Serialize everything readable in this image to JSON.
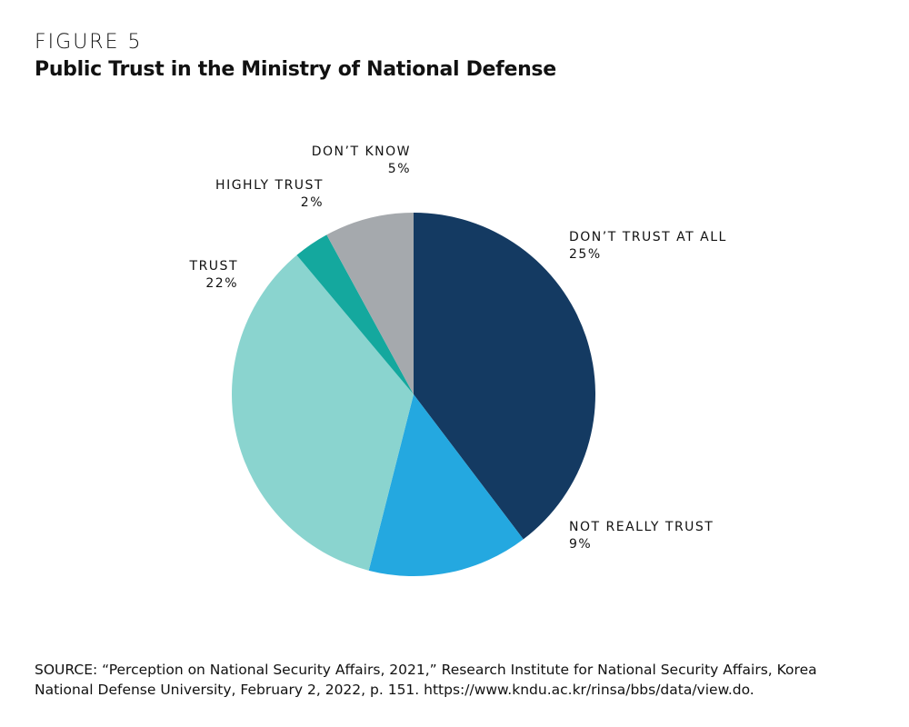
{
  "chart_data": {
    "type": "pie",
    "figure_label": "FIGURE 5",
    "title": "Public Trust in the Ministry of National Defense",
    "categories": [
      "DON’T TRUST AT ALL",
      "NOT REALLY TRUST",
      "TRUST",
      "HIGHLY TRUST",
      "DON’T KNOW"
    ],
    "values": [
      25,
      9,
      22,
      2,
      5
    ],
    "value_labels": [
      "25%",
      "9%",
      "22%",
      "2%",
      "5%"
    ],
    "colors": [
      "#143a62",
      "#24a8e0",
      "#8ad4cf",
      "#14a89e",
      "#a5a9ad"
    ],
    "source": "SOURCE: “Perception on National Security Affairs, 2021,” Research Institute for National Security Affairs, Korea National Defense University, February 2, 2022, p. 151. https://www.kndu.ac.kr/rinsa/bbs/data/view.do."
  }
}
